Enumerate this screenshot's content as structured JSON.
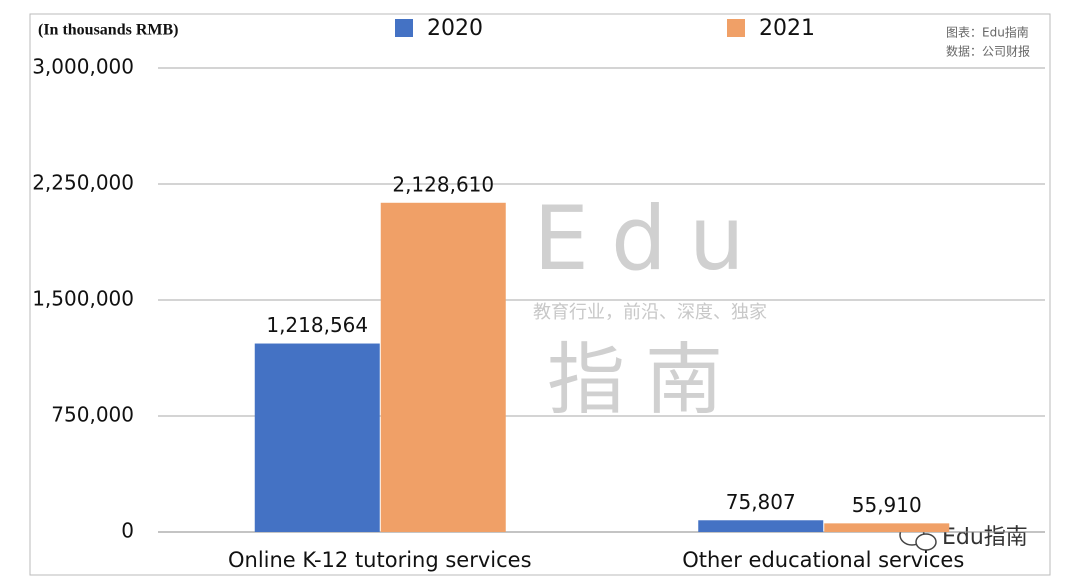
{
  "chart_data": {
    "type": "bar",
    "y_axis_label": "(In thousands RMB)",
    "categories": [
      "Online K-12 tutoring services",
      "Other educational services"
    ],
    "series": [
      {
        "name": "2020",
        "color": "#4472c4",
        "values": [
          1218564,
          75807
        ],
        "value_labels": [
          "1,218,564",
          "75,807"
        ]
      },
      {
        "name": "2021",
        "color": "#f0a067",
        "values": [
          2128610,
          55910
        ],
        "value_labels": [
          "2,128,610",
          "55,910"
        ]
      }
    ],
    "ylim": [
      0,
      3000000
    ],
    "yticks": [
      0,
      {
        "value": 750000,
        "label": "750,000"
      },
      {
        "value": 1500000,
        "label": "1,500,000"
      },
      {
        "value": 2250000,
        "label": "2,250,000"
      },
      {
        "value": 3000000,
        "label": "3,000,000"
      }
    ],
    "grid": true,
    "source_notes": [
      "图表：Edu指南",
      "数据：公司财报"
    ],
    "watermark": {
      "logo": "Edu",
      "slogan": "教育行业，前沿、深度、独家",
      "name": "指南",
      "signature": "Edu指南"
    }
  }
}
